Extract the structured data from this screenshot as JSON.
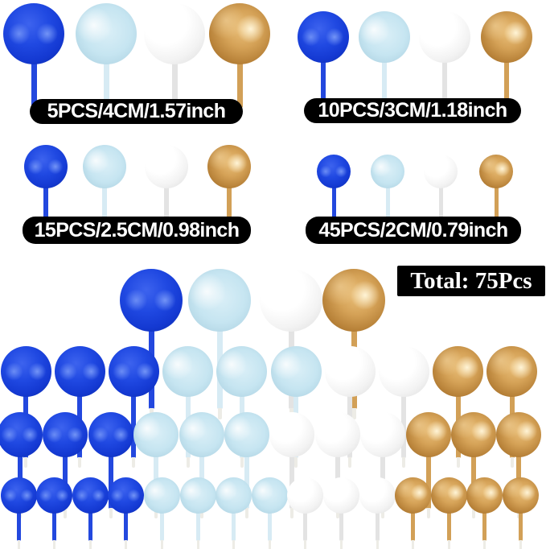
{
  "colors": {
    "blue": "#1c43da",
    "light-blue": "#c2e3f0",
    "white": "#f5f5f5",
    "gold": "#cd9849"
  },
  "size_groups": [
    {
      "label": "5PCS/4CM/1.57inch",
      "ball_colors": [
        "blue",
        "light-blue",
        "white",
        "gold"
      ]
    },
    {
      "label": "10PCS/3CM/1.18inch",
      "ball_colors": [
        "blue",
        "light-blue",
        "white",
        "gold"
      ]
    },
    {
      "label": "15PCS/2.5CM/0.98inch",
      "ball_colors": [
        "blue",
        "light-blue",
        "white",
        "gold"
      ]
    },
    {
      "label": "45PCS/2CM/0.79inch",
      "ball_colors": [
        "blue",
        "light-blue",
        "white",
        "gold"
      ]
    }
  ],
  "total_badge": {
    "label": "Total: 75Pcs"
  },
  "bottom_display": {
    "rows": [
      {
        "balls": [
          "blue",
          "light-blue",
          "white",
          "gold"
        ]
      },
      {
        "balls": [
          "blue",
          "blue",
          "blue",
          "light-blue",
          "light-blue",
          "light-blue",
          "white",
          "white",
          "gold",
          "gold"
        ]
      },
      {
        "balls": [
          "blue",
          "blue",
          "blue",
          "light-blue",
          "light-blue",
          "light-blue",
          "white",
          "white",
          "white",
          "gold",
          "gold",
          "gold"
        ]
      },
      {
        "balls": [
          "blue",
          "blue",
          "blue",
          "blue",
          "light-blue",
          "light-blue",
          "light-blue",
          "light-blue",
          "white",
          "white",
          "white",
          "gold",
          "gold",
          "gold",
          "gold"
        ]
      }
    ]
  }
}
